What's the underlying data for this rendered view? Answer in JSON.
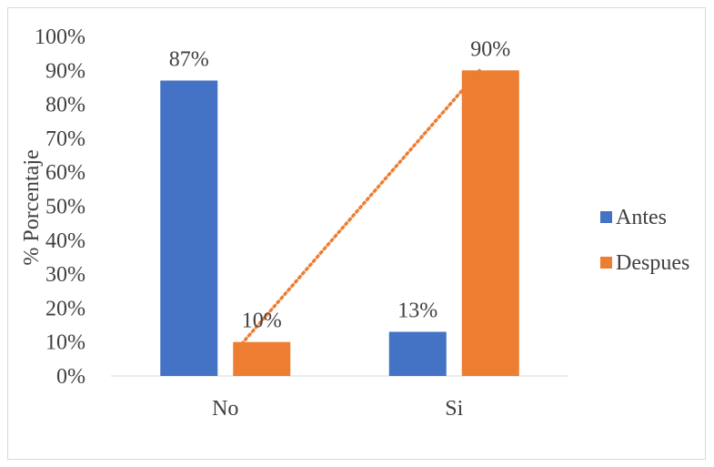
{
  "chart_data": {
    "type": "bar",
    "categories": [
      "No",
      "Si"
    ],
    "series": [
      {
        "name": "Antes",
        "values": [
          87,
          13
        ],
        "labels": [
          "87%",
          "13%"
        ],
        "color": "#4472C4"
      },
      {
        "name": "Despues",
        "values": [
          10,
          90
        ],
        "labels": [
          "10%",
          "90%"
        ],
        "color": "#ED7D31"
      }
    ],
    "ylabel": "% Porcentaje",
    "ylim": [
      0,
      100
    ],
    "ytick_step": 10,
    "ytick_labels": [
      "0%",
      "10%",
      "20%",
      "30%",
      "40%",
      "50%",
      "60%",
      "70%",
      "80%",
      "90%",
      "100%"
    ],
    "trendline": {
      "series": "Despues",
      "style": "dotted",
      "color": "#ED7D31"
    },
    "grid": false,
    "legend_position": "right"
  }
}
